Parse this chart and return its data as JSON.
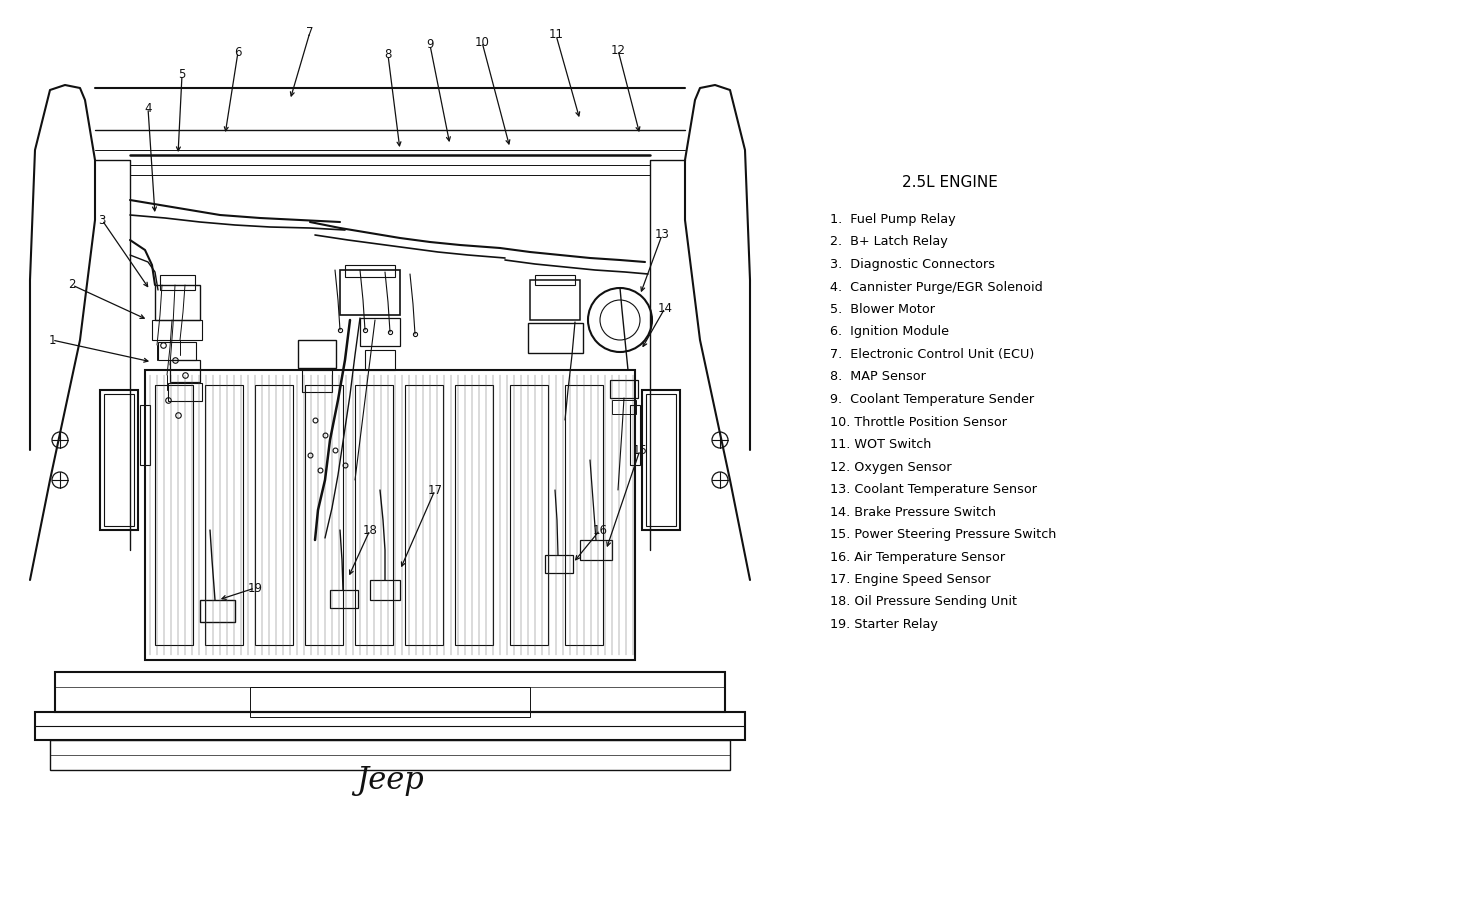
{
  "title": "2.5L ENGINE",
  "legend_items": [
    "1.  Fuel Pump Relay",
    "2.  B+ Latch Relay",
    "3.  Diagnostic Connectors",
    "4.  Cannister Purge/EGR Solenoid",
    "5.  Blower Motor",
    "6.  Ignition Module",
    "7.  Electronic Control Unit (ECU)",
    "8.  MAP Sensor",
    "9.  Coolant Temperature Sender",
    "10. Throttle Position Sensor",
    "11. WOT Switch",
    "12. Oxygen Sensor",
    "13. Coolant Temperature Sensor",
    "14. Brake Pressure Switch",
    "15. Power Steering Pressure Switch",
    "16. Air Temperature Sensor",
    "17. Engine Speed Sensor",
    "18. Oil Pressure Sending Unit",
    "19. Starter Relay"
  ],
  "background_color": "#ffffff",
  "text_color": "#000000",
  "title_fontsize": 11,
  "legend_fontsize": 9.2,
  "fig_width": 14.58,
  "fig_height": 9.06
}
